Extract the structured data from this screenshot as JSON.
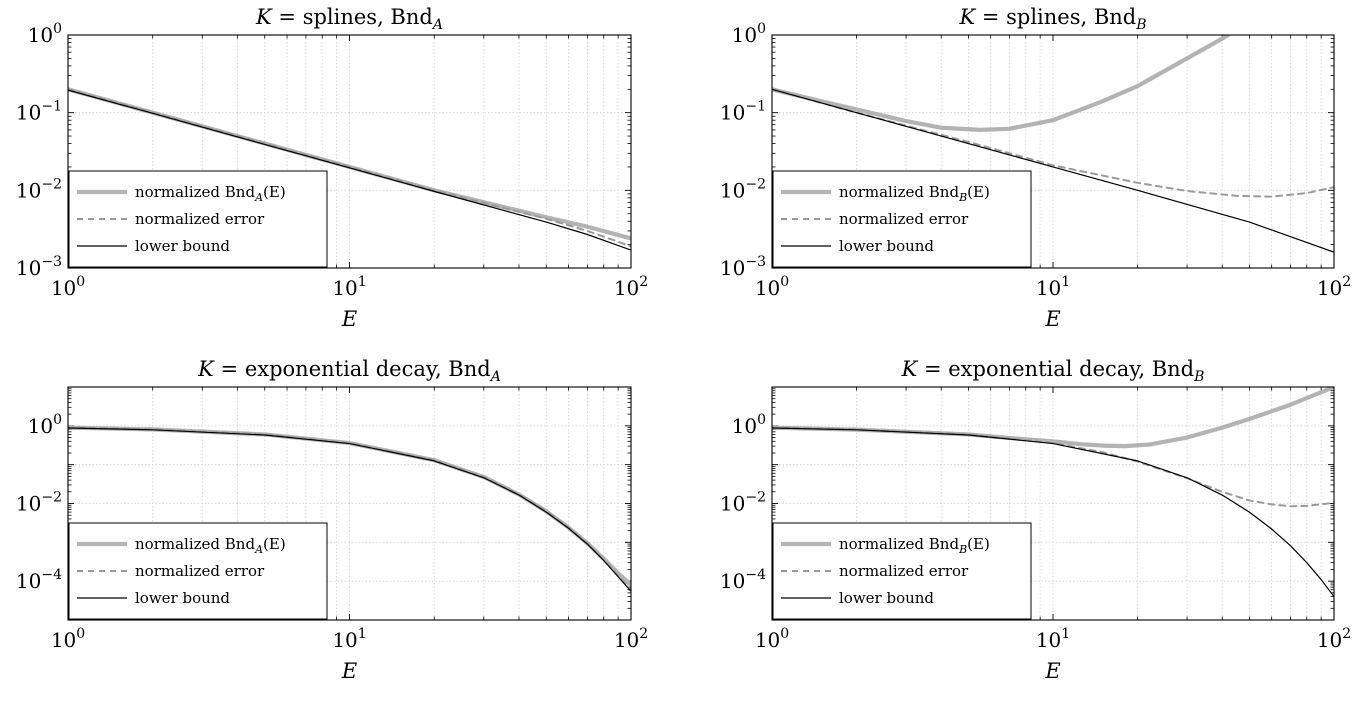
{
  "chart_data": [
    {
      "type": "line",
      "title": "K = splines, Bnd",
      "title_parts": {
        "var": "K",
        "eq": " = ",
        "text": "splines, ",
        "bnd": "Bnd",
        "sub": "A"
      },
      "xlabel": "E",
      "xscale": "log",
      "yscale": "log",
      "xlim": [
        1,
        100
      ],
      "ylim": [
        0.001,
        1
      ],
      "xticks": [
        1,
        10,
        100
      ],
      "yticks": [
        0.001,
        0.01,
        0.1,
        1
      ],
      "xtick_labels": [
        {
          "base": "10",
          "exp": "0"
        },
        {
          "base": "10",
          "exp": "1"
        },
        {
          "base": "10",
          "exp": "2"
        }
      ],
      "ytick_labels": [
        {
          "base": "10",
          "exp": "−3"
        },
        {
          "base": "10",
          "exp": "−2"
        },
        {
          "base": "10",
          "exp": "−1"
        },
        {
          "base": "10",
          "exp": "0"
        }
      ],
      "grid": true,
      "legend_position": "lower-left",
      "legend": [
        {
          "name": "normalized Bnd_A(E)",
          "text": "normalized ",
          "bnd": "Bnd",
          "sub": "A",
          "arg": "(E)",
          "style": "thick-gray"
        },
        {
          "name": "normalized error",
          "text": "normalized error",
          "style": "dashed-gray"
        },
        {
          "name": "lower bound",
          "text": "lower bound",
          "style": "thin-black"
        }
      ],
      "series": [
        {
          "name": "normalized Bnd_A(E)",
          "style": "thick-gray",
          "x": [
            1,
            2,
            5,
            10,
            20,
            50,
            70,
            100
          ],
          "y": [
            0.2,
            0.1,
            0.04,
            0.02,
            0.01,
            0.0045,
            0.0034,
            0.0024
          ]
        },
        {
          "name": "normalized error",
          "style": "dashed-gray",
          "x": [
            1,
            2,
            5,
            10,
            20,
            50,
            70,
            100
          ],
          "y": [
            0.2,
            0.1,
            0.04,
            0.02,
            0.01,
            0.0043,
            0.003,
            0.0019
          ]
        },
        {
          "name": "lower bound",
          "style": "thin-black",
          "x": [
            1,
            2,
            5,
            10,
            20,
            50,
            70,
            100
          ],
          "y": [
            0.195,
            0.098,
            0.039,
            0.0195,
            0.0097,
            0.0039,
            0.0027,
            0.0017
          ]
        }
      ]
    },
    {
      "type": "line",
      "title": "K = splines, Bnd",
      "title_parts": {
        "var": "K",
        "eq": " = ",
        "text": "splines, ",
        "bnd": "Bnd",
        "sub": "B"
      },
      "xlabel": "E",
      "xscale": "log",
      "yscale": "log",
      "xlim": [
        1,
        100
      ],
      "ylim": [
        0.001,
        1
      ],
      "xticks": [
        1,
        10,
        100
      ],
      "yticks": [
        0.001,
        0.01,
        0.1,
        1
      ],
      "xtick_labels": [
        {
          "base": "10",
          "exp": "0"
        },
        {
          "base": "10",
          "exp": "1"
        },
        {
          "base": "10",
          "exp": "2"
        }
      ],
      "ytick_labels": [
        {
          "base": "10",
          "exp": "−3"
        },
        {
          "base": "10",
          "exp": "−2"
        },
        {
          "base": "10",
          "exp": "−1"
        },
        {
          "base": "10",
          "exp": "0"
        }
      ],
      "grid": true,
      "legend_position": "lower-left",
      "legend": [
        {
          "name": "normalized Bnd_B(E)",
          "text": "normalized ",
          "bnd": "Bnd",
          "sub": "B",
          "arg": "(E)",
          "style": "thick-gray"
        },
        {
          "name": "normalized error",
          "text": "normalized error",
          "style": "dashed-gray"
        },
        {
          "name": "lower bound",
          "text": "lower bound",
          "style": "thin-black"
        }
      ],
      "series": [
        {
          "name": "normalized Bnd_B(E)",
          "style": "thick-gray",
          "x": [
            1,
            1.5,
            2,
            3,
            4,
            5.5,
            7,
            10,
            15,
            20,
            30,
            40,
            42
          ],
          "y": [
            0.2,
            0.14,
            0.11,
            0.078,
            0.064,
            0.06,
            0.062,
            0.08,
            0.14,
            0.22,
            0.5,
            0.9,
            1.0
          ]
        },
        {
          "name": "normalized error",
          "style": "dashed-gray",
          "x": [
            1,
            2,
            5,
            10,
            15,
            20,
            30,
            45,
            60,
            80,
            100
          ],
          "y": [
            0.2,
            0.1,
            0.042,
            0.021,
            0.0155,
            0.0125,
            0.0098,
            0.0085,
            0.0083,
            0.0092,
            0.011
          ]
        },
        {
          "name": "lower bound",
          "style": "thin-black",
          "x": [
            1,
            2,
            5,
            10,
            20,
            50,
            100
          ],
          "y": [
            0.2,
            0.1,
            0.04,
            0.02,
            0.01,
            0.0039,
            0.0016
          ]
        }
      ]
    },
    {
      "type": "line",
      "title": "K = exponential decay, Bnd",
      "title_parts": {
        "var": "K",
        "eq": " = ",
        "text": "exponential decay, ",
        "bnd": "Bnd",
        "sub": "A"
      },
      "xlabel": "E",
      "xscale": "log",
      "yscale": "log",
      "xlim": [
        1,
        100
      ],
      "ylim": [
        1e-05,
        10
      ],
      "xticks": [
        1,
        10,
        100
      ],
      "yticks": [
        0.0001,
        0.01,
        1
      ],
      "xtick_labels": [
        {
          "base": "10",
          "exp": "0"
        },
        {
          "base": "10",
          "exp": "1"
        },
        {
          "base": "10",
          "exp": "2"
        }
      ],
      "ytick_labels": [
        {
          "base": "10",
          "exp": "−4"
        },
        {
          "base": "10",
          "exp": "−2"
        },
        {
          "base": "10",
          "exp": "0"
        }
      ],
      "grid": true,
      "legend_position": "lower-left",
      "legend": [
        {
          "name": "normalized Bnd_A(E)",
          "text": "normalized ",
          "bnd": "Bnd",
          "sub": "A",
          "arg": "(E)",
          "style": "thick-gray"
        },
        {
          "name": "normalized error",
          "text": "normalized error",
          "style": "dashed-gray"
        },
        {
          "name": "lower bound",
          "text": "lower bound",
          "style": "thin-black"
        }
      ],
      "series": [
        {
          "name": "normalized Bnd_A(E)",
          "style": "thick-gray",
          "x": [
            1,
            2,
            5,
            10,
            20,
            30,
            40,
            50,
            60,
            70,
            80,
            90,
            100
          ],
          "y": [
            0.9,
            0.81,
            0.6,
            0.36,
            0.13,
            0.048,
            0.017,
            0.0063,
            0.0024,
            0.00095,
            0.00038,
            0.00016,
            8e-05
          ]
        },
        {
          "name": "normalized error",
          "style": "dashed-gray",
          "x": [
            1,
            2,
            5,
            10,
            20,
            30,
            40,
            50,
            60,
            70,
            80,
            90,
            100
          ],
          "y": [
            0.9,
            0.81,
            0.6,
            0.36,
            0.13,
            0.048,
            0.017,
            0.0063,
            0.0024,
            0.00092,
            0.00035,
            0.00014,
            6e-05
          ]
        },
        {
          "name": "lower bound",
          "style": "thin-black",
          "x": [
            1,
            2,
            5,
            10,
            20,
            30,
            40,
            50,
            60,
            70,
            80,
            90,
            100
          ],
          "y": [
            0.88,
            0.79,
            0.58,
            0.35,
            0.125,
            0.046,
            0.0165,
            0.006,
            0.0023,
            0.0009,
            0.00034,
            0.00013,
            5.5e-05
          ]
        }
      ]
    },
    {
      "type": "line",
      "title": "K = exponential decay, Bnd",
      "title_parts": {
        "var": "K",
        "eq": " = ",
        "text": "exponential decay, ",
        "bnd": "Bnd",
        "sub": "B"
      },
      "xlabel": "E",
      "xscale": "log",
      "yscale": "log",
      "xlim": [
        1,
        100
      ],
      "ylim": [
        1e-05,
        10
      ],
      "xticks": [
        1,
        10,
        100
      ],
      "yticks": [
        0.0001,
        0.01,
        1
      ],
      "xtick_labels": [
        {
          "base": "10",
          "exp": "0"
        },
        {
          "base": "10",
          "exp": "1"
        },
        {
          "base": "10",
          "exp": "2"
        }
      ],
      "ytick_labels": [
        {
          "base": "10",
          "exp": "−4"
        },
        {
          "base": "10",
          "exp": "−2"
        },
        {
          "base": "10",
          "exp": "0"
        }
      ],
      "grid": true,
      "legend_position": "lower-left",
      "legend": [
        {
          "name": "normalized Bnd_B(E)",
          "text": "normalized ",
          "bnd": "Bnd",
          "sub": "B",
          "arg": "(E)",
          "style": "thick-gray"
        },
        {
          "name": "normalized error",
          "text": "normalized error",
          "style": "dashed-gray"
        },
        {
          "name": "lower bound",
          "text": "lower bound",
          "style": "thin-black"
        }
      ],
      "series": [
        {
          "name": "normalized Bnd_B(E)",
          "style": "thick-gray",
          "x": [
            1,
            2,
            5,
            8,
            10,
            13,
            15,
            18,
            22,
            30,
            40,
            50,
            70,
            100
          ],
          "y": [
            0.9,
            0.8,
            0.6,
            0.45,
            0.4,
            0.33,
            0.31,
            0.3,
            0.33,
            0.5,
            0.9,
            1.5,
            3.5,
            10
          ]
        },
        {
          "name": "normalized error",
          "style": "dashed-gray",
          "x": [
            1,
            2,
            5,
            10,
            15,
            20,
            30,
            40,
            50,
            60,
            70,
            80,
            90,
            100
          ],
          "y": [
            0.9,
            0.8,
            0.6,
            0.36,
            0.21,
            0.12,
            0.045,
            0.02,
            0.012,
            0.0095,
            0.0085,
            0.0087,
            0.0095,
            0.0105
          ]
        },
        {
          "name": "lower bound",
          "style": "thin-black",
          "x": [
            1,
            2,
            5,
            10,
            20,
            30,
            40,
            50,
            60,
            70,
            80,
            90,
            100
          ],
          "y": [
            0.88,
            0.79,
            0.58,
            0.35,
            0.125,
            0.046,
            0.0165,
            0.006,
            0.0022,
            0.00082,
            0.0003,
            0.00011,
            4e-05
          ]
        }
      ]
    }
  ],
  "colors": {
    "thick_gray": "#b3b3b3",
    "dashed_gray": "#9a9a9a",
    "black": "#000000",
    "grid": "#d4d4d4"
  }
}
